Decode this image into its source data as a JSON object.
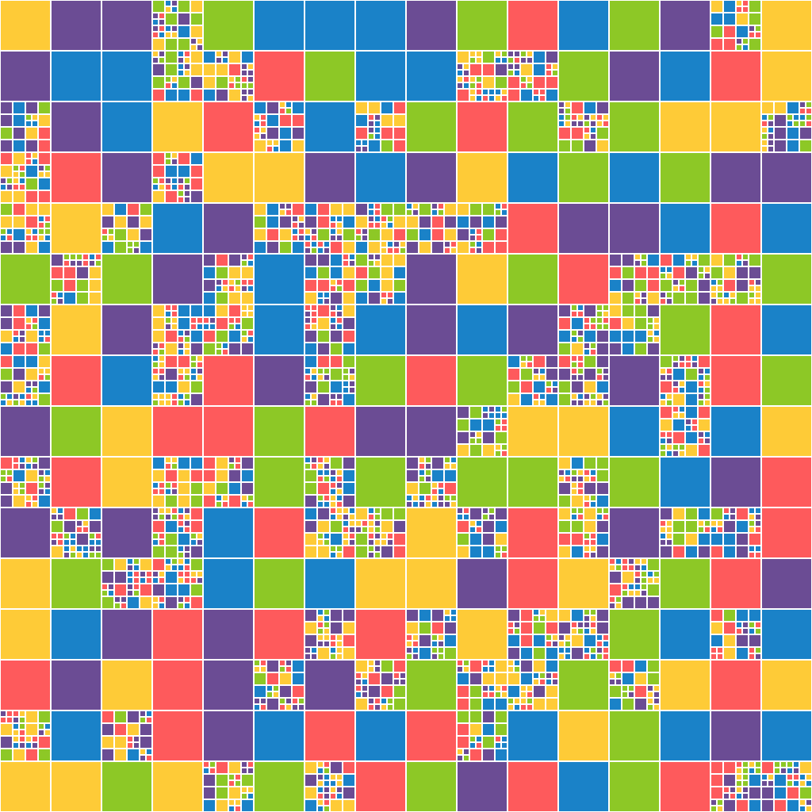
{
  "palette": [
    "#1a82c8",
    "#fe5a5c",
    "#6b4c94",
    "#8dc826",
    "#fecb37"
  ]
}
